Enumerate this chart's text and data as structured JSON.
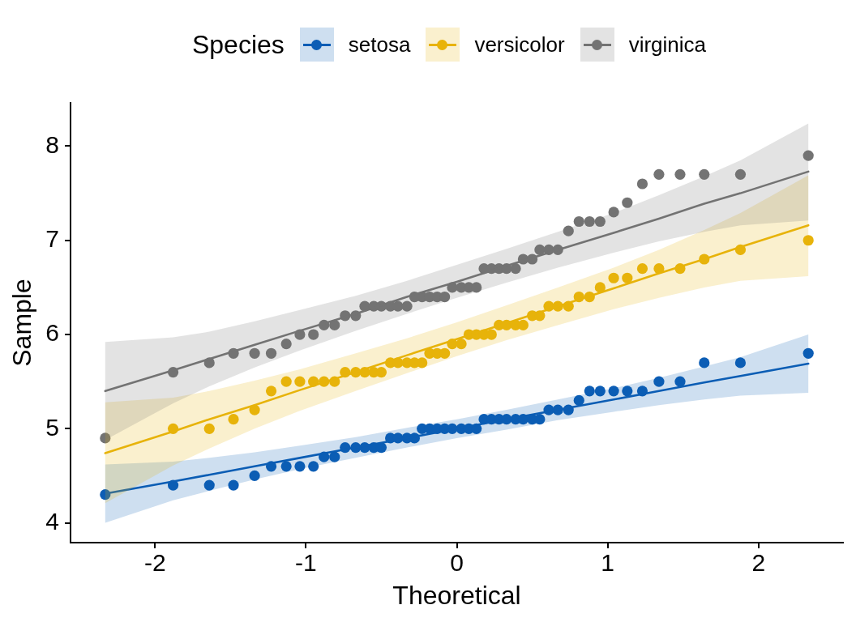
{
  "chart_data": {
    "type": "scatter",
    "xlabel": "Theoretical",
    "ylabel": "Sample",
    "legend_title": "Species",
    "legend": "top",
    "marker": "circle",
    "grid": false,
    "xlim": [
      -2.56,
      2.56
    ],
    "ylim": [
      3.79,
      8.46
    ],
    "xticks": [
      -2,
      -1,
      0,
      1,
      2
    ],
    "yticks": [
      4,
      5,
      6,
      7,
      8
    ],
    "x": [
      -2.33,
      -1.88,
      -1.64,
      -1.48,
      -1.34,
      -1.23,
      -1.13,
      -1.04,
      -0.95,
      -0.88,
      -0.81,
      -0.74,
      -0.67,
      -0.61,
      -0.55,
      -0.5,
      -0.44,
      -0.39,
      -0.33,
      -0.28,
      -0.23,
      -0.18,
      -0.13,
      -0.08,
      -0.03,
      0.03,
      0.08,
      0.13,
      0.18,
      0.23,
      0.28,
      0.33,
      0.39,
      0.44,
      0.5,
      0.55,
      0.61,
      0.67,
      0.74,
      0.81,
      0.88,
      0.95,
      1.04,
      1.13,
      1.23,
      1.34,
      1.48,
      1.64,
      1.88,
      2.33
    ],
    "series": [
      {
        "name": "setosa",
        "color": "#0c5db5",
        "values": [
          4.3,
          4.4,
          4.4,
          4.4,
          4.5,
          4.6,
          4.6,
          4.6,
          4.6,
          4.7,
          4.7,
          4.8,
          4.8,
          4.8,
          4.8,
          4.8,
          4.9,
          4.9,
          4.9,
          4.9,
          5.0,
          5.0,
          5.0,
          5.0,
          5.0,
          5.0,
          5.0,
          5.0,
          5.1,
          5.1,
          5.1,
          5.1,
          5.1,
          5.1,
          5.1,
          5.1,
          5.2,
          5.2,
          5.2,
          5.3,
          5.4,
          5.4,
          5.4,
          5.4,
          5.4,
          5.5,
          5.5,
          5.7,
          5.7,
          5.8
        ]
      },
      {
        "name": "versicolor",
        "color": "#e8b30a",
        "values": [
          null,
          5.0,
          5.0,
          5.1,
          5.2,
          5.4,
          5.5,
          5.5,
          5.5,
          5.5,
          5.5,
          5.6,
          5.6,
          5.6,
          5.6,
          5.6,
          5.7,
          5.7,
          5.7,
          5.7,
          5.7,
          5.8,
          5.8,
          5.8,
          5.9,
          5.9,
          6.0,
          6.0,
          6.0,
          6.0,
          6.1,
          6.1,
          6.1,
          6.1,
          6.2,
          6.2,
          6.3,
          6.3,
          6.3,
          6.4,
          6.4,
          6.5,
          6.6,
          6.6,
          6.7,
          6.7,
          6.7,
          6.8,
          6.9,
          7.0
        ]
      },
      {
        "name": "virginica",
        "color": "#737373",
        "values": [
          4.9,
          5.6,
          5.7,
          5.8,
          5.8,
          5.8,
          5.9,
          6.0,
          6.0,
          6.1,
          6.1,
          6.2,
          6.2,
          6.3,
          6.3,
          6.3,
          6.3,
          6.3,
          6.3,
          6.4,
          6.4,
          6.4,
          6.4,
          6.4,
          6.5,
          6.5,
          6.5,
          6.5,
          6.7,
          6.7,
          6.7,
          6.7,
          6.7,
          6.8,
          6.8,
          6.9,
          6.9,
          6.9,
          7.1,
          7.2,
          7.2,
          7.2,
          7.3,
          7.4,
          7.6,
          7.7,
          7.7,
          7.7,
          7.7,
          7.9
        ]
      },
      {
        "type": "line",
        "marker": "none",
        "color": "#0c5db5",
        "x": [
          -2.33,
          -1.88,
          -1.64,
          -1.34,
          -1.04,
          -0.67,
          -0.33,
          0,
          0.33,
          0.67,
          1.04,
          1.34,
          1.64,
          1.88,
          2.33
        ],
        "values": [
          4.31,
          4.44,
          4.51,
          4.6,
          4.69,
          4.8,
          4.9,
          5.0,
          5.1,
          5.2,
          5.31,
          5.4,
          5.49,
          5.56,
          5.69
        ],
        "lower": [
          4.0,
          4.24,
          4.34,
          4.46,
          4.57,
          4.69,
          4.8,
          4.9,
          4.99,
          5.09,
          5.18,
          5.25,
          5.31,
          5.35,
          5.38
        ],
        "upper": [
          4.62,
          4.65,
          4.69,
          4.75,
          4.82,
          4.91,
          5.01,
          5.1,
          5.2,
          5.31,
          5.43,
          5.54,
          5.66,
          5.76,
          6.0
        ]
      },
      {
        "type": "line",
        "marker": "none",
        "color": "#e8b30a",
        "x": [
          -2.33,
          -1.88,
          -1.64,
          -1.34,
          -1.04,
          -0.67,
          -0.33,
          0,
          0.33,
          0.67,
          1.04,
          1.34,
          1.64,
          1.88,
          2.33
        ],
        "values": [
          4.74,
          4.97,
          5.1,
          5.25,
          5.41,
          5.6,
          5.78,
          5.95,
          6.12,
          6.3,
          6.49,
          6.65,
          6.8,
          6.93,
          7.16
        ],
        "lower": [
          4.21,
          4.61,
          4.79,
          5.0,
          5.19,
          5.4,
          5.59,
          5.77,
          5.94,
          6.1,
          6.27,
          6.39,
          6.5,
          6.57,
          6.62
        ],
        "upper": [
          5.28,
          5.33,
          5.4,
          5.51,
          5.63,
          5.8,
          5.96,
          6.13,
          6.31,
          6.5,
          6.71,
          6.9,
          7.11,
          7.29,
          7.69
        ]
      },
      {
        "type": "line",
        "marker": "none",
        "color": "#737373",
        "x": [
          -2.33,
          -1.88,
          -1.64,
          -1.34,
          -1.04,
          -0.67,
          -0.33,
          0,
          0.33,
          0.67,
          1.04,
          1.34,
          1.64,
          1.88,
          2.33
        ],
        "values": [
          5.4,
          5.62,
          5.74,
          5.89,
          6.04,
          6.22,
          6.4,
          6.56,
          6.73,
          6.9,
          7.08,
          7.23,
          7.39,
          7.5,
          7.73
        ],
        "lower": [
          4.88,
          5.27,
          5.45,
          5.65,
          5.83,
          6.04,
          6.22,
          6.39,
          6.55,
          6.71,
          6.87,
          6.99,
          7.09,
          7.16,
          7.21
        ],
        "upper": [
          5.92,
          5.97,
          6.03,
          6.14,
          6.26,
          6.41,
          6.57,
          6.74,
          6.91,
          7.09,
          7.29,
          7.48,
          7.68,
          7.85,
          8.24
        ]
      }
    ]
  }
}
